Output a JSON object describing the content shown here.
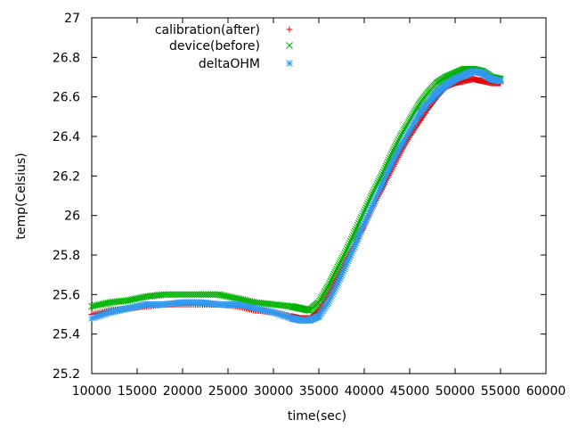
{
  "chart_data": {
    "type": "scatter",
    "title": "",
    "xlabel": "time(sec)",
    "ylabel": "temp(Celsius)",
    "xlim": [
      10000,
      60000
    ],
    "ylim": [
      25.2,
      27
    ],
    "x_ticks": [
      "10000",
      "15000",
      "20000",
      "25000",
      "30000",
      "35000",
      "40000",
      "45000",
      "50000",
      "55000",
      "60000"
    ],
    "y_ticks": [
      "25.2",
      "25.4",
      "25.6",
      "25.8",
      "26",
      "26.2",
      "26.4",
      "26.6",
      "26.8",
      "27"
    ],
    "grid": false,
    "legend_position": "top-left",
    "series": [
      {
        "name": "calibration(after)",
        "marker": "plus",
        "color": "#e00000",
        "x": [
          10000,
          12000,
          14000,
          16000,
          18000,
          20000,
          22000,
          24000,
          26000,
          28000,
          30000,
          32000,
          33000,
          34000,
          35000,
          36000,
          37000,
          38000,
          39000,
          40000,
          41000,
          42000,
          43000,
          44000,
          45000,
          46000,
          47000,
          48000,
          49000,
          50000,
          51000,
          52000,
          53000,
          54000,
          55000
        ],
        "y": [
          25.5,
          25.52,
          25.53,
          25.54,
          25.55,
          25.55,
          25.55,
          25.55,
          25.54,
          25.52,
          25.51,
          25.49,
          25.48,
          25.48,
          25.52,
          25.6,
          25.68,
          25.77,
          25.86,
          25.95,
          26.05,
          26.14,
          26.23,
          26.32,
          26.4,
          26.47,
          26.54,
          26.6,
          26.65,
          26.67,
          26.68,
          26.69,
          26.68,
          26.67,
          26.67
        ]
      },
      {
        "name": "device(before)",
        "marker": "cross",
        "color": "#00b000",
        "x": [
          10000,
          12000,
          14000,
          16000,
          18000,
          20000,
          22000,
          24000,
          26000,
          28000,
          30000,
          32000,
          33000,
          34000,
          35000,
          36000,
          37000,
          38000,
          39000,
          40000,
          41000,
          42000,
          43000,
          44000,
          45000,
          46000,
          47000,
          48000,
          49000,
          50000,
          51000,
          52000,
          53000,
          54000,
          55000
        ],
        "y": [
          25.54,
          25.56,
          25.57,
          25.59,
          25.6,
          25.6,
          25.6,
          25.6,
          25.58,
          25.56,
          25.55,
          25.54,
          25.53,
          25.52,
          25.56,
          25.64,
          25.73,
          25.82,
          25.92,
          26.02,
          26.12,
          26.21,
          26.31,
          26.4,
          26.48,
          26.56,
          26.62,
          26.67,
          26.7,
          26.72,
          26.74,
          26.74,
          26.73,
          26.7,
          26.69
        ]
      },
      {
        "name": "deltaOHM",
        "marker": "star",
        "color": "#3399ee",
        "x": [
          10000,
          12000,
          14000,
          16000,
          18000,
          20000,
          22000,
          24000,
          26000,
          28000,
          30000,
          32000,
          33000,
          34000,
          35000,
          36000,
          37000,
          38000,
          39000,
          40000,
          41000,
          42000,
          43000,
          44000,
          45000,
          46000,
          47000,
          48000,
          49000,
          50000,
          51000,
          52000,
          53000,
          54000,
          55000
        ],
        "y": [
          25.48,
          25.51,
          25.53,
          25.55,
          25.55,
          25.56,
          25.56,
          25.55,
          25.55,
          25.53,
          25.51,
          25.48,
          25.47,
          25.47,
          25.49,
          25.56,
          25.65,
          25.75,
          25.85,
          25.96,
          26.06,
          26.16,
          26.26,
          26.35,
          26.43,
          26.51,
          26.57,
          26.62,
          26.66,
          26.69,
          26.71,
          26.73,
          26.72,
          26.69,
          26.68
        ]
      }
    ]
  }
}
